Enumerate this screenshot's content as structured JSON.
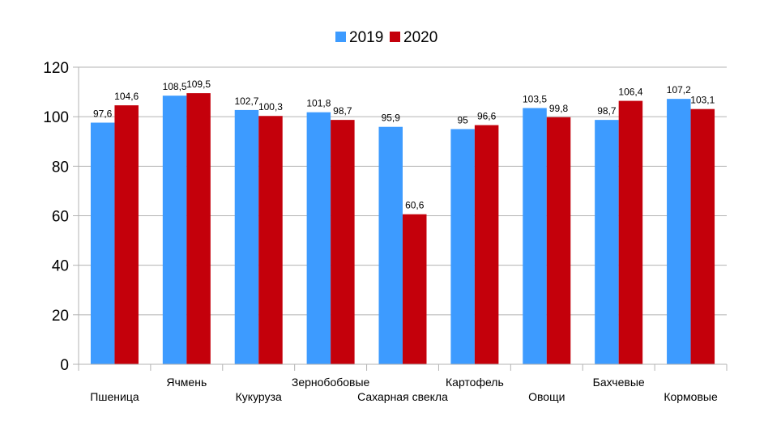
{
  "chart_data": {
    "type": "bar",
    "title": "",
    "xlabel": "",
    "ylabel": "",
    "categories": [
      "Пшеница",
      "Ячмень",
      "Кукуруза",
      "Зернобобовые",
      "Сахарная свекла",
      "Картофель",
      "Овощи",
      "Бахчевые",
      "Кормовые"
    ],
    "series": [
      {
        "name": "2019",
        "color": "#3d9bff",
        "values": [
          97.6,
          108.5,
          102.7,
          101.8,
          95.9,
          95,
          103.5,
          98.7,
          107.2
        ],
        "labels": [
          "97,6",
          "108,5",
          "102,7",
          "101,8",
          "95,9",
          "95",
          "103,5",
          "98,7",
          "107,2"
        ]
      },
      {
        "name": "2020",
        "color": "#c4000b",
        "values": [
          104.6,
          109.5,
          100.3,
          98.7,
          60.6,
          96.6,
          99.8,
          106.4,
          103.1
        ],
        "labels": [
          "104,6",
          "109,5",
          "100,3",
          "98,7",
          "60,6",
          "96,6",
          "99,8",
          "106,4",
          "103,1"
        ]
      }
    ],
    "ylim": [
      0,
      120
    ],
    "yticks": [
      0,
      20,
      40,
      60,
      80,
      100,
      120
    ],
    "grid": true,
    "legend_position": "top-center"
  }
}
